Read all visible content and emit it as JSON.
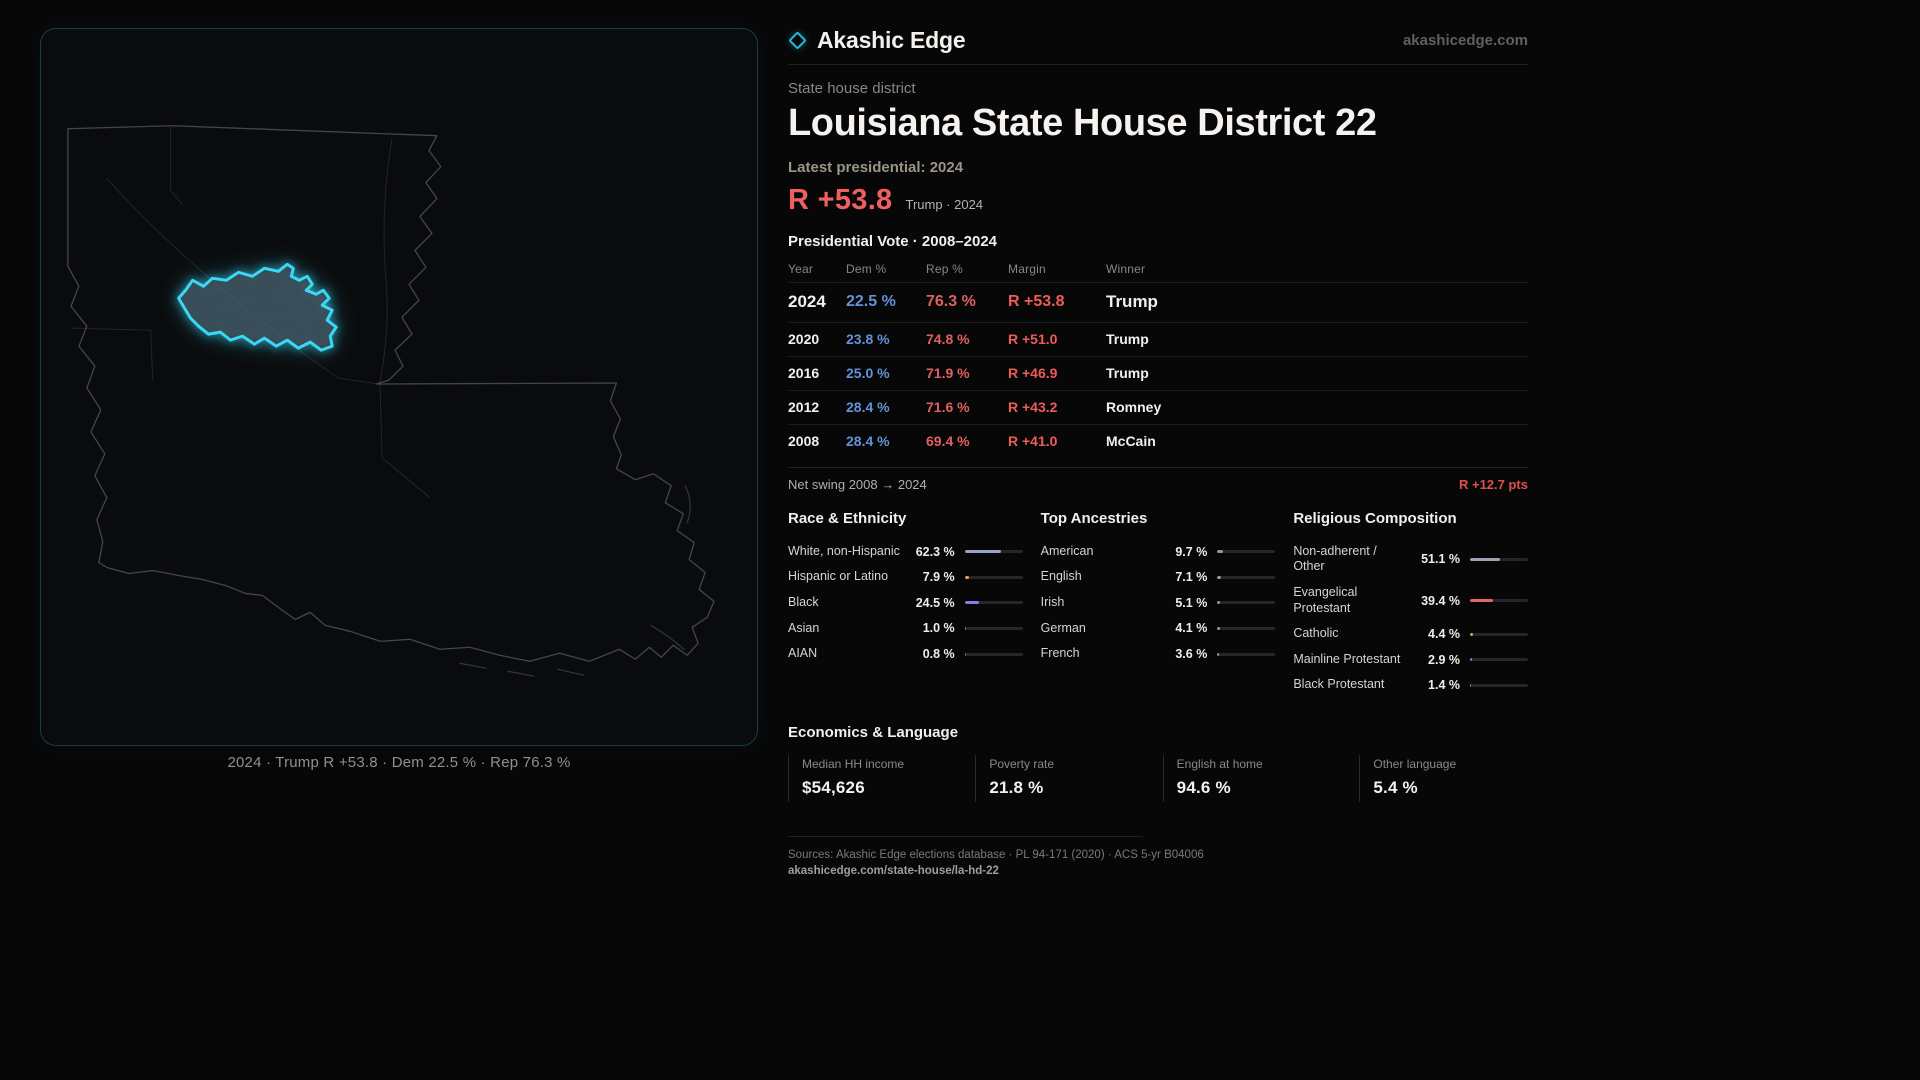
{
  "brand": {
    "name": "Akashic Edge",
    "domain": "akashicedge.com"
  },
  "district": {
    "category": "State house district",
    "title": "Louisiana State House District 22",
    "latest_label": "Latest presidential: 2024",
    "headline_margin": "R +53.8",
    "headline_sub": "Trump · 2024"
  },
  "map": {
    "caption": "2024 · Trump R +53.8 · Dem 22.5 % · Rep 76.3 %"
  },
  "vote_table": {
    "title": "Presidential Vote · 2008–2024",
    "columns": [
      "Year",
      "Dem %",
      "Rep %",
      "Margin",
      "Winner"
    ],
    "rows": [
      {
        "year": "2024",
        "dem": "22.5 %",
        "rep": "76.3 %",
        "margin": "R +53.8",
        "winner": "Trump"
      },
      {
        "year": "2020",
        "dem": "23.8 %",
        "rep": "74.8 %",
        "margin": "R +51.0",
        "winner": "Trump"
      },
      {
        "year": "2016",
        "dem": "25.0 %",
        "rep": "71.9 %",
        "margin": "R +46.9",
        "winner": "Trump"
      },
      {
        "year": "2012",
        "dem": "28.4 %",
        "rep": "71.6 %",
        "margin": "R +43.2",
        "winner": "Romney"
      },
      {
        "year": "2008",
        "dem": "28.4 %",
        "rep": "69.4 %",
        "margin": "R +41.0",
        "winner": "McCain"
      }
    ],
    "net_swing_label": "Net swing 2008 → 2024",
    "net_swing_value": "R +12.7 pts"
  },
  "demographics": [
    {
      "title": "Race & Ethnicity",
      "rows": [
        {
          "label": "White, non-Hispanic",
          "value": "62.3 %",
          "pct": 62.3,
          "color": "#9aa3c2"
        },
        {
          "label": "Hispanic or Latino",
          "value": "7.9 %",
          "pct": 7.9,
          "color": "#e3a43e"
        },
        {
          "label": "Black",
          "value": "24.5 %",
          "pct": 24.5,
          "color": "#8f7ae0"
        },
        {
          "label": "Asian",
          "value": "1.0 %",
          "pct": 1.0,
          "color": "#4fb483"
        },
        {
          "label": "AIAN",
          "value": "0.8 %",
          "pct": 0.8,
          "color": "#d4604e"
        }
      ]
    },
    {
      "title": "Top Ancestries",
      "rows": [
        {
          "label": "American",
          "value": "9.7 %",
          "pct": 9.7,
          "color": "#8e99ad"
        },
        {
          "label": "English",
          "value": "7.1 %",
          "pct": 7.1,
          "color": "#8e99ad"
        },
        {
          "label": "Irish",
          "value": "5.1 %",
          "pct": 5.1,
          "color": "#8e99ad"
        },
        {
          "label": "German",
          "value": "4.1 %",
          "pct": 4.1,
          "color": "#8e99ad"
        },
        {
          "label": "French",
          "value": "3.6 %",
          "pct": 3.6,
          "color": "#8e99ad"
        }
      ]
    },
    {
      "title": "Religious Composition",
      "rows": [
        {
          "label": "Non-adherent / Other",
          "value": "51.1 %",
          "pct": 51.1,
          "color": "#9aa2b4"
        },
        {
          "label": "Evangelical Protestant",
          "value": "39.4 %",
          "pct": 39.4,
          "color": "#e2666e"
        },
        {
          "label": "Catholic",
          "value": "4.4 %",
          "pct": 4.4,
          "color": "#e3a43e"
        },
        {
          "label": "Mainline Protestant",
          "value": "2.9 %",
          "pct": 2.9,
          "color": "#6292d8"
        },
        {
          "label": "Black Protestant",
          "value": "1.4 %",
          "pct": 1.4,
          "color": "#9a9a9a"
        }
      ]
    }
  ],
  "economics": {
    "title": "Economics & Language",
    "stats": [
      {
        "label": "Median HH income",
        "value": "$54,626"
      },
      {
        "label": "Poverty rate",
        "value": "21.8 %"
      },
      {
        "label": "English at home",
        "value": "94.6 %"
      },
      {
        "label": "Other language",
        "value": "5.4 %"
      }
    ]
  },
  "footer": {
    "sources": "Sources: Akashic Edge elections database · PL 94-171 (2020) · ACS 5-yr B04006",
    "permalink": "akashicedge.com/state-house/la-hd-22"
  },
  "colors": {
    "accent_cyan": "#3bd8f6",
    "rep_red": "#ef5f5f",
    "dem_blue": "#6292d8"
  }
}
